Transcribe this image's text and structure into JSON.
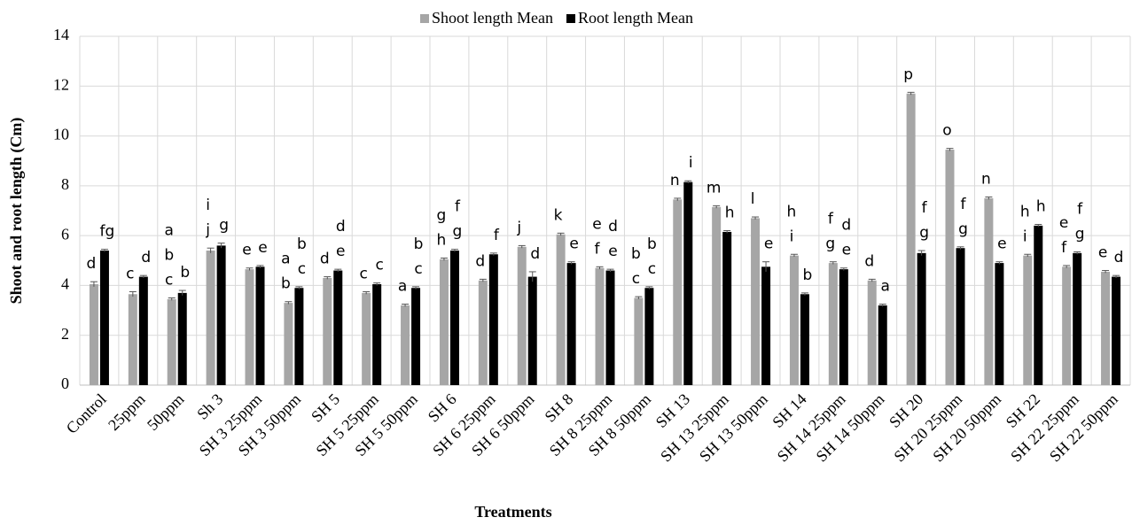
{
  "chart_data": {
    "type": "bar",
    "ylabel": "Shoot and root length (Cm)",
    "xlabel": "Treatments",
    "categories": [
      "Control",
      "25ppm",
      "50ppm",
      "Sh 3",
      "SH 3 25ppm",
      "SH 3 50ppm",
      "SH 5",
      "SH 5 25ppm",
      "SH 5 50ppm",
      "SH 6",
      "SH 6 25ppm",
      "SH 6 50ppm",
      "SH 8",
      "SH 8 25ppm",
      "SH 8 50ppm",
      "SH 13",
      "SH 13 25ppm",
      "SH 13 50ppm",
      "SH 14",
      "SH 14 25ppm",
      "SH 14 50ppm",
      "SH 20",
      "SH 20 25ppm",
      "SH 20 50ppm",
      "SH 22",
      "SH 22 25ppm",
      "SH 22 50ppm"
    ],
    "series": [
      {
        "name": "Shoot length Mean",
        "color": "#a6a6a6",
        "values": [
          4.05,
          3.65,
          3.45,
          5.4,
          4.65,
          3.3,
          4.3,
          3.7,
          3.2,
          5.05,
          4.2,
          5.55,
          6.05,
          4.7,
          3.5,
          7.45,
          7.15,
          6.7,
          5.2,
          4.9,
          4.2,
          11.7,
          9.45,
          7.5,
          5.2,
          4.75,
          4.55
        ],
        "errors": [
          0.1,
          0.1,
          0.05,
          0.1,
          0.05,
          0.05,
          0.05,
          0.05,
          0.05,
          0.05,
          0.05,
          0.05,
          0.05,
          0.05,
          0.05,
          0.05,
          0.05,
          0.05,
          0.05,
          0.05,
          0.05,
          0.05,
          0.05,
          0.05,
          0.05,
          0.05,
          0.05
        ],
        "letters": [
          [
            "d"
          ],
          [
            "c"
          ],
          [
            "a",
            "b",
            "c"
          ],
          [
            "i",
            "j"
          ],
          [
            "e"
          ],
          [
            "a",
            "b"
          ],
          [
            "d"
          ],
          [
            "c"
          ],
          [
            "a"
          ],
          [
            "g",
            "h"
          ],
          [
            "d"
          ],
          [
            "j"
          ],
          [
            "k"
          ],
          [
            "e",
            "f"
          ],
          [
            "b",
            "c"
          ],
          [
            "n"
          ],
          [
            "m"
          ],
          [
            "l"
          ],
          [
            "h",
            "i"
          ],
          [
            "f",
            "g"
          ],
          [
            "d"
          ],
          [
            "p"
          ],
          [
            "o"
          ],
          [
            "n"
          ],
          [
            "h",
            "i"
          ],
          [
            "e",
            "f"
          ],
          [
            "e"
          ]
        ]
      },
      {
        "name": "Root length Mean",
        "color": "#000000",
        "values": [
          5.4,
          4.35,
          3.7,
          5.6,
          4.75,
          3.9,
          4.6,
          4.05,
          3.9,
          5.4,
          5.25,
          4.35,
          4.9,
          4.6,
          3.9,
          8.15,
          6.15,
          4.75,
          3.65,
          4.65,
          3.2,
          5.3,
          5.5,
          4.9,
          6.4,
          5.3,
          4.35
        ],
        "errors": [
          0.05,
          0.05,
          0.1,
          0.1,
          0.05,
          0.05,
          0.05,
          0.05,
          0.05,
          0.05,
          0.05,
          0.2,
          0.05,
          0.05,
          0.05,
          0.05,
          0.05,
          0.2,
          0.05,
          0.05,
          0.05,
          0.1,
          0.05,
          0.05,
          0.05,
          0.05,
          0.05
        ],
        "letters": [
          [
            "fg"
          ],
          [
            "d"
          ],
          [
            "b"
          ],
          [
            "g"
          ],
          [
            "e"
          ],
          [
            "b",
            "c"
          ],
          [
            "d",
            "e"
          ],
          [
            "c"
          ],
          [
            "b",
            "c"
          ],
          [
            "f",
            "g"
          ],
          [
            "f"
          ],
          [
            "d"
          ],
          [
            "e"
          ],
          [
            "d",
            "e"
          ],
          [
            "b",
            "c"
          ],
          [
            "i"
          ],
          [
            "h"
          ],
          [
            "e"
          ],
          [
            "b"
          ],
          [
            "d",
            "e"
          ],
          [
            "a"
          ],
          [
            "f",
            "g"
          ],
          [
            "f",
            "g"
          ],
          [
            "e"
          ],
          [
            "h"
          ],
          [
            "f",
            "g"
          ],
          [
            "d"
          ]
        ]
      }
    ],
    "ylim": [
      0,
      14
    ],
    "yticks": [
      0,
      2,
      4,
      6,
      8,
      10,
      12,
      14
    ],
    "grid": true,
    "legend": "top"
  }
}
